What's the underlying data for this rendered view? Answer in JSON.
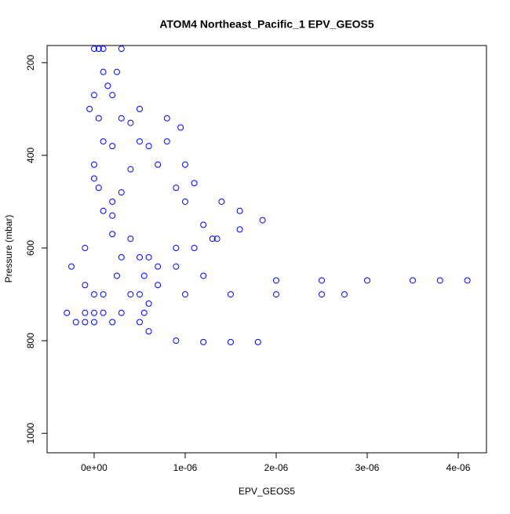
{
  "chart_data": {
    "type": "scatter",
    "title": "ATOM4 Northeast_Pacific_1 EPV_GEOS5",
    "x_label": "EPV_GEOS5",
    "y_label": "Pressure (mbar)",
    "color": "#0000ff",
    "x": [
      5e-07,
      8e-07,
      9.5e-07,
      8e-07,
      1e-06,
      1.1e-06,
      1.4e-06,
      1.6e-06,
      1.85e-06,
      1.6e-06,
      1.3e-06,
      9e-07,
      6e-07,
      7e-07,
      1.2e-06,
      2e-06,
      2.5e-06,
      3e-06,
      3.5e-06,
      3.8e-06,
      4.1e-06,
      5e-08,
      1e-07,
      0,
      5e-08,
      1e-07,
      0,
      5e-08,
      1e-07,
      2e-07,
      3e-07,
      2.5e-07,
      1e-07,
      0,
      -1e-07,
      3e-07,
      2.5e-07,
      2e-07,
      3e-07,
      5e-07,
      7e-07,
      9e-07,
      1e-06,
      1.2e-06,
      1.35e-06,
      1.1e-06,
      9e-07,
      7e-07,
      6e-07,
      5e-07,
      6e-07,
      9e-07,
      1.2e-06,
      1.5e-06,
      1.8e-06,
      0,
      5e-07,
      1e-06,
      1.5e-06,
      2e-06,
      2.5e-06,
      2.75e-06,
      0,
      -5e-08,
      0,
      -1e-07,
      -2.5e-07,
      -1e-07,
      -3e-07,
      -1e-07,
      1e-07,
      3e-07,
      5.5e-07,
      -2e-07,
      0,
      2e-07,
      1e-07,
      1.5e-07,
      4e-07,
      6e-07,
      4e-07,
      3e-07,
      2e-07,
      4e-07,
      5e-07,
      5.5e-07,
      4e-07,
      2e-07,
      2e-07
    ],
    "values": [
      300,
      320,
      340,
      370,
      420,
      460,
      500,
      520,
      540,
      560,
      580,
      600,
      620,
      640,
      660,
      670,
      670,
      670,
      670,
      670,
      670,
      170,
      220,
      270,
      320,
      370,
      420,
      470,
      520,
      570,
      620,
      660,
      700,
      740,
      760,
      170,
      220,
      270,
      320,
      370,
      420,
      470,
      500,
      550,
      580,
      600,
      640,
      680,
      720,
      760,
      780,
      800,
      803,
      803,
      803,
      700,
      700,
      700,
      700,
      700,
      700,
      700,
      170,
      300,
      450,
      600,
      640,
      680,
      740,
      740,
      740,
      740,
      740,
      760,
      760,
      760,
      170,
      250,
      330,
      380,
      430,
      480,
      530,
      580,
      620,
      660,
      700,
      380,
      500
    ],
    "xlim": [
      -5.17e-07,
      4.31e-06
    ],
    "ylim": [
      1042,
      163
    ],
    "xticks": [
      {
        "value": 0,
        "label": "0e+00"
      },
      {
        "value": 1e-06,
        "label": "1e-06"
      },
      {
        "value": 2e-06,
        "label": "2e-06"
      },
      {
        "value": 3e-06,
        "label": "3e-06"
      },
      {
        "value": 4e-06,
        "label": "4e-06"
      }
    ],
    "yticks": [
      200,
      400,
      600,
      800,
      1000
    ]
  }
}
